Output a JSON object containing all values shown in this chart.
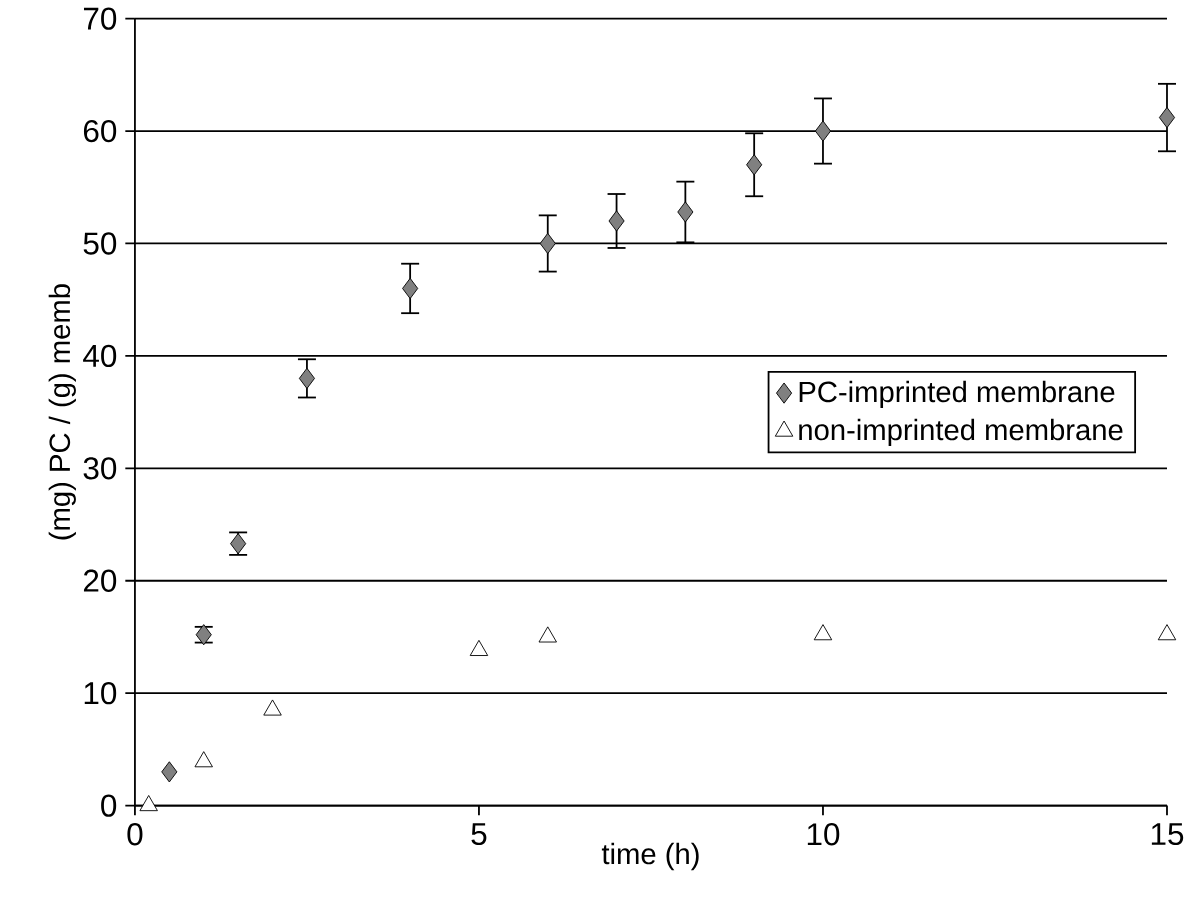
{
  "chart_data": {
    "type": "scatter",
    "xlabel": "time (h)",
    "ylabel": "(mg) PC / (g) memb",
    "xlim": [
      0,
      15
    ],
    "ylim": [
      0,
      70
    ],
    "xticks": [
      0,
      5,
      10,
      15
    ],
    "yticks": [
      0,
      10,
      20,
      30,
      40,
      50,
      60,
      70
    ],
    "grid": "y",
    "legend": "right",
    "series": [
      {
        "name": "PC-imprinted membrane",
        "color": "#808080",
        "marker": "diamond",
        "x": [
          0.5,
          1,
          1.5,
          2.5,
          4,
          6,
          7,
          8,
          9,
          10,
          15
        ],
        "values": [
          3.0,
          15.2,
          23.3,
          38,
          46,
          50,
          52,
          52.8,
          57,
          60,
          61.2
        ],
        "errors": [
          null,
          0.7,
          1.0,
          1.7,
          2.2,
          2.5,
          2.4,
          2.7,
          2.8,
          2.9,
          3.0
        ]
      },
      {
        "name": "non-imprinted membrane",
        "color": "#ffffff",
        "marker": "triangle",
        "x": [
          0.2,
          1,
          2,
          5,
          6,
          10,
          15
        ],
        "values": [
          0,
          3.9,
          8.5,
          13.8,
          15,
          15.2,
          15.2
        ]
      }
    ]
  }
}
